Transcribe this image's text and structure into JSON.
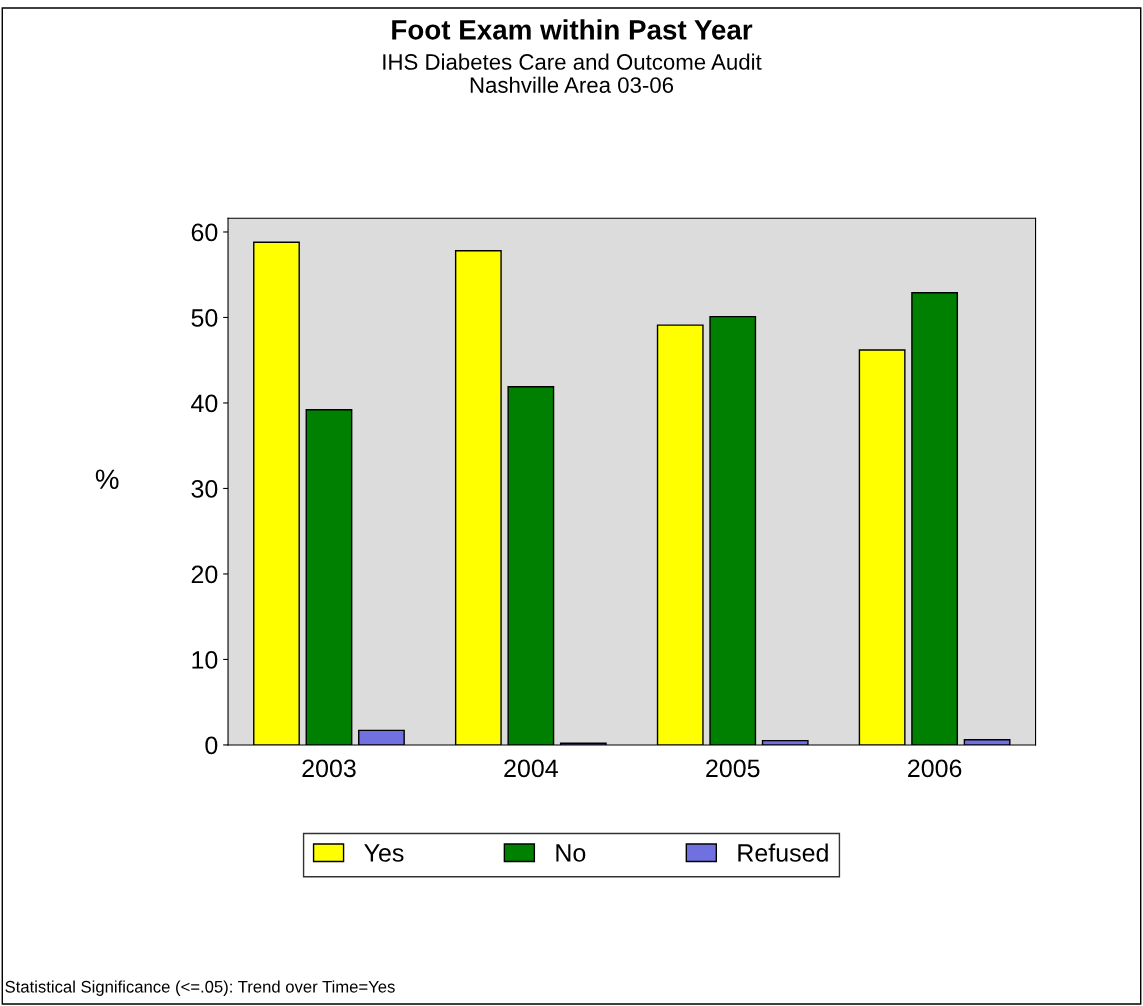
{
  "chart_data": {
    "type": "bar",
    "title": "Foot Exam within Past Year",
    "subtitle": "IHS Diabetes Care and Outcome Audit\nNashville Area 03-06",
    "ylabel": "%",
    "categories": [
      "2003",
      "2004",
      "2005",
      "2006"
    ],
    "series": [
      {
        "name": "Yes",
        "color": "#ffff00",
        "values": [
          58.8,
          57.8,
          49.1,
          46.2
        ]
      },
      {
        "name": "No",
        "color": "#008000",
        "values": [
          39.2,
          41.9,
          50.1,
          52.9
        ]
      },
      {
        "name": "Refused",
        "color": "#7070e0",
        "values": [
          1.7,
          0.2,
          0.5,
          0.6
        ]
      }
    ],
    "ylim": [
      0,
      61.6
    ],
    "yticks": [
      0,
      10,
      20,
      30,
      40,
      50,
      60
    ],
    "grid": false,
    "legend": "bottom",
    "annotations": [
      "Statistical Significance (<=.05): Trend over Time=Yes"
    ]
  }
}
